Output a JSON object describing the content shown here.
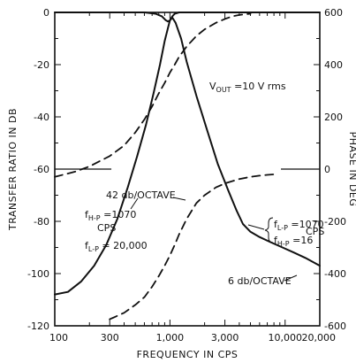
{
  "chart_data": {
    "type": "line",
    "title": "",
    "xlabel": "FREQUENCY IN CPS",
    "ylabel": "TRANSFER RATIO IN DB",
    "y2label": "PHASE IN DEG",
    "x_scale": "log",
    "xlim": [
      100,
      20000
    ],
    "ylim": [
      -120,
      0
    ],
    "y2lim": [
      -600,
      600
    ],
    "grid": false,
    "xticks": [
      100,
      300,
      1000,
      3000,
      10000,
      20000
    ],
    "xtick_labels": [
      "100",
      "300",
      "1,000",
      "3,000",
      "10,000",
      "20,000"
    ],
    "yticks": [
      0,
      -20,
      -40,
      -60,
      -80,
      -100,
      -120
    ],
    "ytick_labels": [
      "0",
      "-20",
      "-40",
      "-60",
      "-80",
      "-100",
      "-120"
    ],
    "y2ticks": [
      600,
      400,
      200,
      0,
      -200,
      -400,
      -600
    ],
    "y2tick_labels": [
      "600",
      "400",
      "200",
      "0",
      "-200",
      "-400",
      "-600"
    ],
    "series": [
      {
        "style": "solid",
        "axis": "left",
        "x": [
          100,
          130,
          170,
          220,
          280,
          350,
          430,
          520,
          620,
          720,
          820,
          900,
          960,
          1000,
          1050,
          1120,
          1250,
          1400,
          1700,
          2100,
          2600,
          3200,
          3800,
          4300,
          5000,
          6000,
          7500,
          9500,
          12000,
          15000,
          20000
        ],
        "y": [
          -108,
          -107,
          -103,
          -97,
          -89,
          -79,
          -67,
          -55,
          -43,
          -31,
          -20,
          -11,
          -6,
          -3,
          -2,
          -4,
          -10,
          -19,
          -32,
          -45,
          -58,
          -68,
          -76,
          -81,
          -84,
          -86,
          -88,
          -90,
          -92,
          -94,
          -97
        ]
      },
      {
        "style": "solid",
        "axis": "left",
        "x": [
          100,
          200,
          400,
          600,
          750,
          850,
          920,
          960,
          1000,
          1050,
          1100,
          1200,
          1400,
          2000,
          5000,
          10000,
          20000
        ],
        "y": [
          0,
          0,
          0,
          0,
          -0.5,
          -1.5,
          -3,
          -3.5,
          -3,
          -1.5,
          -0.5,
          0,
          0,
          0,
          0,
          0,
          0
        ]
      },
      {
        "style": "dashed",
        "axis": "right",
        "x": [
          100,
          150,
          200,
          300,
          400,
          500,
          600,
          700,
          800,
          900,
          1000,
          1100,
          1200,
          1400,
          1700,
          2000,
          2500,
          3000,
          3500,
          4000,
          4500,
          5000
        ],
        "y": [
          -30,
          -10,
          10,
          50,
          90,
          140,
          190,
          240,
          290,
          330,
          370,
          400,
          430,
          470,
          510,
          535,
          560,
          575,
          585,
          590,
          593,
          595
        ]
      },
      {
        "style": "dashed",
        "axis": "right",
        "x": [
          300,
          400,
          500,
          600,
          700,
          800,
          900,
          1000,
          1100,
          1200,
          1400,
          1700,
          2000,
          2500,
          3000,
          4000,
          5000,
          6000,
          7000,
          8000
        ],
        "y": [
          -575,
          -550,
          -520,
          -490,
          -450,
          -410,
          -370,
          -330,
          -290,
          -250,
          -190,
          -130,
          -100,
          -70,
          -55,
          -38,
          -30,
          -25,
          -22,
          -20
        ]
      }
    ],
    "reference_lines": [
      {
        "axis": "right",
        "x": [
          100,
          310
        ],
        "y": [
          0,
          0
        ]
      },
      {
        "axis": "right",
        "x": [
          9200,
          20000
        ],
        "y": [
          0,
          0
        ]
      }
    ],
    "annotations": [
      {
        "text": "V",
        "sub": "OUT",
        "rest": " =10 V rms"
      },
      {
        "text": "42 db/OCTAVE"
      },
      {
        "text": "f",
        "sub": "H-P",
        "rest": " =1070"
      },
      {
        "text": "CPS"
      },
      {
        "text": "f",
        "sub": "L-P",
        "rest": " = 20,000"
      },
      {
        "text": "f",
        "sub": "L-P",
        "rest": " =1070"
      },
      {
        "text": "f",
        "sub": "H-P",
        "rest": " =16"
      },
      {
        "text": "CPS"
      },
      {
        "text": "6 db/OCTAVE"
      }
    ]
  }
}
